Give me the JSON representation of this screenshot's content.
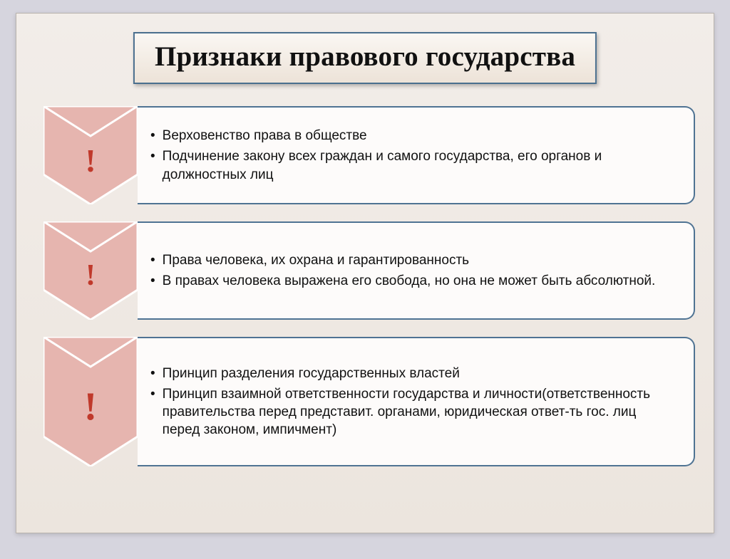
{
  "title": "Признаки правового государства",
  "colors": {
    "page_bg": "#d6d5de",
    "slide_bg_top": "#f2ede9",
    "slide_bg_bottom": "#ece5de",
    "title_border": "#4a6f8e",
    "content_border": "#4f7393",
    "content_bg": "#fdfbfa",
    "chevron_fill": "#e6b5af",
    "chevron_stroke": "#ffffff",
    "marker_color": "#c0392b",
    "text_color": "#111111"
  },
  "rows": [
    {
      "marker": "!",
      "marker_fontsize": 46,
      "chevron_height": 138,
      "bullet_fontsize": 19,
      "bullets": [
        "Верховенство права в обществе",
        "Подчинение закону всех граждан и самого государства, его органов и должностных лиц"
      ]
    },
    {
      "marker": "!",
      "marker_fontsize": 42,
      "chevron_height": 138,
      "bullet_fontsize": 19,
      "bullets": [
        "Права человека, их охрана и гарантированность",
        "В правах человека выражена его свобода, но она не может быть абсолютной."
      ]
    },
    {
      "marker": "!",
      "marker_fontsize": 56,
      "chevron_height": 182,
      "bullet_fontsize": 19,
      "bullets": [
        "Принцип разделения государственных властей",
        "Принцип взаимной ответственности государства и личности(ответственность правительства перед представит. органами, юридическая ответ-ть гос. лиц перед законом, импичмент)"
      ]
    }
  ]
}
